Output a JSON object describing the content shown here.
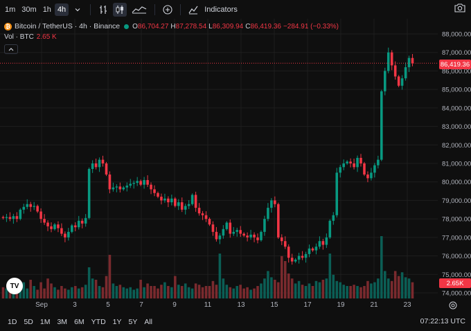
{
  "toolbar": {
    "timeframes": [
      "1m",
      "30m",
      "1h",
      "4h"
    ],
    "active_timeframe": "4h",
    "indicators_label": "Indicators"
  },
  "legend": {
    "symbol": "Bitcoin / TetherUS · 4h · Binance",
    "coin_glyph": "₿",
    "open_key": "O",
    "open": "86,704.27",
    "high_key": "H",
    "high": "87,278.54",
    "low_key": "L",
    "low": "86,309.94",
    "close_key": "C",
    "close": "86,419.36",
    "change": "−284.91 (−0.33%)"
  },
  "volume_legend": {
    "label": "Vol · BTC",
    "value": "2.65 K"
  },
  "price_axis": {
    "ticks": [
      "88,000.00",
      "87,000.00",
      "86,000.00",
      "85,000.00",
      "84,000.00",
      "83,000.00",
      "82,000.00",
      "81,000.00",
      "80,000.00",
      "79,000.00",
      "78,000.00",
      "77,000.00",
      "76,000.00",
      "75,000.00",
      "74,000.00"
    ],
    "current_price_tag": "86,419.36",
    "volume_tag": "2.65K"
  },
  "time_axis": {
    "labels": [
      "Sep",
      "3",
      "5",
      "7",
      "9",
      "11",
      "13",
      "15",
      "17",
      "19",
      "21",
      "23"
    ]
  },
  "bottom_bar": {
    "ranges": [
      "1D",
      "5D",
      "1M",
      "3M",
      "6M",
      "YTD",
      "1Y",
      "5Y",
      "All"
    ],
    "clock": "07:22:13 UTC"
  },
  "colors": {
    "up": "#089981",
    "down": "#f23645",
    "up_volume": "#0b5e55",
    "down_volume": "#7a2a2e",
    "background": "#0f0f0f",
    "grid": "#1e1e1e"
  },
  "chart_data": {
    "type": "candlestick",
    "x": [
      "Sep"
    ],
    "ylim": [
      73500,
      88500
    ],
    "current_price": 86419.36,
    "closes": [
      78050,
      78100,
      78000,
      78150,
      78000,
      78500,
      78650,
      78800,
      78650,
      78700,
      78400,
      78000,
      77800,
      77600,
      77450,
      77700,
      77500,
      77200,
      77000,
      77300,
      77650,
      77550,
      77900,
      77750,
      78050,
      80700,
      81000,
      80800,
      81200,
      81000,
      80400,
      79600,
      79700,
      79750,
      79600,
      79700,
      79800,
      79900,
      79950,
      80050,
      79850,
      80100,
      79850,
      79600,
      79400,
      79200,
      79000,
      79100,
      78900,
      79100,
      78700,
      78900,
      78500,
      78700,
      78800,
      79300,
      78600,
      78300,
      78200,
      78000,
      77700,
      77300,
      76900,
      77100,
      77450,
      77800,
      77200,
      77300,
      77400,
      77200,
      77100,
      77000,
      77150,
      77000,
      76850,
      77300,
      78000,
      78600,
      79000,
      78800,
      77000,
      76800,
      76500,
      75900,
      75700,
      75800,
      76000,
      75900,
      76100,
      76400,
      76300,
      76500,
      76800,
      76600,
      77000,
      77900,
      78200,
      80500,
      80800,
      81000,
      81100,
      81000,
      80800,
      81300,
      81000,
      80400,
      80200,
      80500,
      80900,
      81200,
      84900,
      86000,
      87000,
      86300,
      85700,
      85200,
      85600,
      86200,
      86700,
      86420
    ],
    "volumes": [
      0.9,
      0.8,
      0.7,
      0.6,
      0.9,
      1.2,
      1.3,
      0.8,
      1.5,
      1.0,
      0.7,
      1.3,
      0.8,
      1.6,
      1.2,
      0.9,
      0.7,
      1.0,
      0.8,
      0.7,
      0.9,
      1.0,
      0.8,
      0.9,
      1.1,
      2.5,
      1.6,
      1.5,
      1.0,
      0.9,
      1.8,
      3.5,
      1.2,
      1.0,
      1.1,
      0.9,
      0.8,
      0.9,
      0.7,
      0.8,
      1.5,
      0.9,
      1.2,
      1.0,
      1.0,
      0.8,
      1.1,
      1.3,
      1.0,
      0.9,
      1.8,
      1.1,
      1.0,
      1.2,
      0.9,
      0.8,
      1.2,
      1.1,
      0.9,
      1.0,
      1.0,
      1.4,
      1.1,
      3.6,
      1.6,
      1.1,
      0.9,
      0.8,
      1.0,
      1.1,
      0.8,
      0.9,
      0.7,
      0.8,
      1.0,
      1.2,
      1.6,
      2.2,
      1.7,
      1.5,
      1.3,
      3.4,
      3.0,
      2.0,
      1.6,
      1.2,
      1.4,
      1.1,
      1.0,
      1.2,
      1.0,
      1.4,
      1.3,
      1.5,
      1.6,
      3.6,
      1.9,
      1.4,
      1.3,
      1.1,
      1.0,
      1.0,
      1.1,
      1.0,
      0.9,
      1.0,
      1.4,
      1.2,
      1.3,
      1.6,
      5.0,
      2.2,
      1.6,
      1.4,
      2.2,
      1.8,
      2.1,
      1.7,
      1.6,
      1.3
    ]
  }
}
